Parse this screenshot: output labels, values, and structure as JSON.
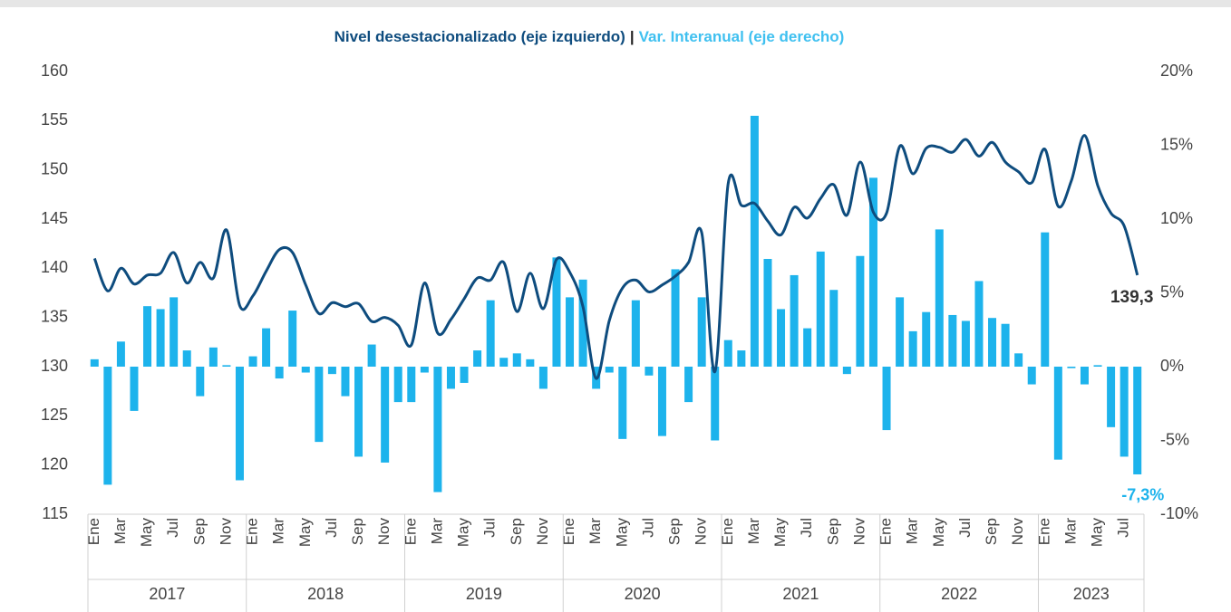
{
  "chart_data": {
    "type": "combo",
    "title_separator": "|",
    "categories": [
      "Ene",
      null,
      "Mar",
      null,
      "May",
      null,
      "Jul",
      null,
      "Sep",
      null,
      "Nov",
      null,
      "Ene",
      null,
      "Mar",
      null,
      "May",
      null,
      "Jul",
      null,
      "Sep",
      null,
      "Nov",
      null,
      "Ene",
      null,
      "Mar",
      null,
      "May",
      null,
      "Jul",
      null,
      "Sep",
      null,
      "Nov",
      null,
      "Ene",
      null,
      "Mar",
      null,
      "May",
      null,
      "Jul",
      null,
      "Sep",
      null,
      "Nov",
      null,
      "Ene",
      null,
      "Mar",
      null,
      "May",
      null,
      "Jul",
      null,
      "Sep",
      null,
      "Nov",
      null,
      "Ene",
      null,
      "Mar",
      null,
      "May",
      null,
      "Jul",
      null,
      "Sep",
      null,
      "Nov",
      null,
      "Ene",
      null,
      "Mar",
      null,
      "May",
      null,
      "Jul",
      null
    ],
    "years": [
      "2017",
      "2018",
      "2019",
      "2020",
      "2021",
      "2022",
      "2023"
    ],
    "series": [
      {
        "name": "Nivel desestacionalizado (eje izquierdo)",
        "type": "line",
        "color": "#0e4c7e",
        "values": [
          141,
          137.7,
          140,
          138.4,
          139.3,
          139.5,
          141.6,
          138.5,
          140.6,
          139,
          143.9,
          136.2,
          137.2,
          139.7,
          141.9,
          141.6,
          138.3,
          135.4,
          136.5,
          136.1,
          136.4,
          134.6,
          135,
          134.2,
          132.2,
          138.5,
          133.4,
          134.8,
          136.9,
          139,
          138.8,
          140.6,
          135.6,
          139.5,
          135.9,
          140.9,
          139.6,
          136.1,
          128.8,
          134.7,
          138,
          138.8,
          137.6,
          138.3,
          139.2,
          140.6,
          143.6,
          129.5,
          148.6,
          146.4,
          146.6,
          144.8,
          143.4,
          146.2,
          145.1,
          147.1,
          148.5,
          145.4,
          150.8,
          145.7,
          145.6,
          152.4,
          149.6,
          152.2,
          152.3,
          151.8,
          153.1,
          151.4,
          152.8,
          150.8,
          149.8,
          148.7,
          152.1,
          146.3,
          148.9,
          153.5,
          148.4,
          145.6,
          144.3,
          139.3
        ],
        "value_labels": [
          null,
          null,
          null,
          null,
          null,
          null,
          null,
          null,
          null,
          null,
          null,
          null,
          null,
          null,
          null,
          null,
          null,
          null,
          null,
          null,
          null,
          null,
          null,
          null,
          null,
          null,
          null,
          null,
          null,
          null,
          null,
          null,
          null,
          null,
          null,
          null,
          null,
          null,
          null,
          null,
          null,
          null,
          null,
          null,
          null,
          null,
          null,
          null,
          null,
          null,
          null,
          null,
          null,
          null,
          null,
          null,
          null,
          null,
          null,
          null,
          null,
          null,
          null,
          null,
          null,
          null,
          null,
          null,
          null,
          null,
          null,
          null,
          null,
          null,
          null,
          null,
          null,
          null,
          null,
          "139,3"
        ]
      },
      {
        "name": "Var. Interanual (eje derecho)",
        "type": "bar",
        "axis": "y2",
        "color": "#1db3ec",
        "values": [
          0.5,
          -8.0,
          1.7,
          -3.0,
          4.1,
          3.9,
          4.7,
          1.1,
          -2.0,
          1.3,
          0.1,
          -7.7,
          0.7,
          2.6,
          -0.8,
          3.8,
          -0.4,
          -5.1,
          -0.5,
          -2.0,
          -6.1,
          1.5,
          -6.5,
          -2.4,
          -2.4,
          -0.4,
          -8.5,
          -1.5,
          -1.1,
          1.1,
          4.5,
          0.6,
          0.9,
          0.5,
          -1.5,
          7.4,
          4.7,
          5.9,
          -1.5,
          -0.4,
          -4.9,
          4.5,
          -0.6,
          -4.7,
          6.6,
          -2.4,
          4.7,
          -5.0,
          1.8,
          1.1,
          17.0,
          7.3,
          3.9,
          6.2,
          2.6,
          7.8,
          5.2,
          -0.5,
          7.5,
          12.8,
          -4.3,
          4.7,
          2.4,
          3.7,
          9.3,
          3.5,
          3.1,
          5.8,
          3.3,
          2.9,
          0.9,
          -1.2,
          9.1,
          -6.3,
          -0.1,
          -1.2,
          0.1,
          -4.1,
          -6.1,
          -7.3
        ],
        "value_labels": [
          null,
          null,
          null,
          null,
          null,
          null,
          null,
          null,
          null,
          null,
          null,
          null,
          null,
          null,
          null,
          null,
          null,
          null,
          null,
          null,
          null,
          null,
          null,
          null,
          null,
          null,
          null,
          null,
          null,
          null,
          null,
          null,
          null,
          null,
          null,
          null,
          null,
          null,
          null,
          null,
          null,
          null,
          null,
          null,
          null,
          null,
          null,
          null,
          null,
          null,
          null,
          null,
          null,
          null,
          null,
          null,
          null,
          null,
          null,
          null,
          null,
          null,
          null,
          null,
          null,
          null,
          null,
          null,
          null,
          null,
          null,
          null,
          null,
          null,
          null,
          null,
          null,
          null,
          null,
          "-7,3%"
        ]
      }
    ],
    "ylim": [
      115,
      160
    ],
    "yticks": [
      115,
      120,
      125,
      130,
      135,
      140,
      145,
      150,
      155,
      160
    ],
    "y2lim": [
      -10,
      20
    ],
    "y2ticks": [
      {
        "value": -10,
        "label": "-10%"
      },
      {
        "value": -5,
        "label": "-5%"
      },
      {
        "value": 0,
        "label": "0%"
      },
      {
        "value": 5,
        "label": "5%"
      },
      {
        "value": 10,
        "label": "10%"
      },
      {
        "value": 15,
        "label": "15%"
      },
      {
        "value": 20,
        "label": "20%"
      }
    ]
  }
}
